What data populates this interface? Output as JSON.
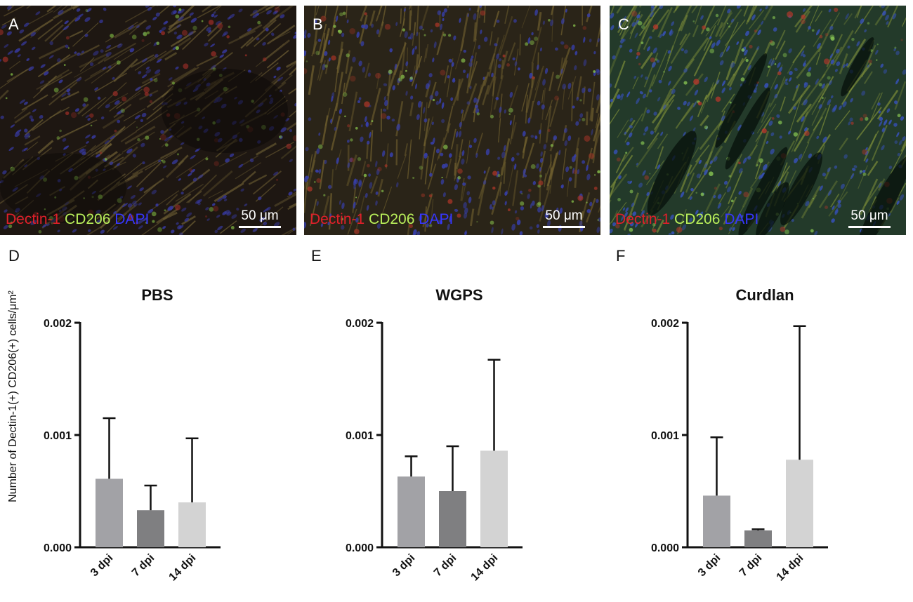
{
  "micrographs": [
    {
      "label": "A",
      "stain": {
        "red": "Dectin-1",
        "green": "CD206",
        "blue": "DAPI"
      },
      "scale_bar": "50 μm"
    },
    {
      "label": "B",
      "stain": {
        "red": "Dectin-1",
        "green": "CD206",
        "blue": "DAPI"
      },
      "scale_bar": "50 μm"
    },
    {
      "label": "C",
      "stain": {
        "red": "Dectin-1",
        "green": "CD206",
        "blue": "DAPI"
      },
      "scale_bar": "50 μm"
    }
  ],
  "y_axis_label": "Number of Dectin-1(+) CD206(+) cells/μm²",
  "colors": {
    "bar_3dpi": "#a2a2a6",
    "bar_7dpi": "#7f7f81",
    "bar_14dpi": "#d3d3d3"
  },
  "chart_data": [
    {
      "type": "bar",
      "panel": "D",
      "title": "PBS",
      "categories": [
        "3 dpi",
        "7 dpi",
        "14 dpi"
      ],
      "values": [
        0.00061,
        0.00033,
        0.0004
      ],
      "errors": [
        0.00054,
        0.00022,
        0.00057
      ],
      "ylim": [
        0,
        0.002
      ],
      "yticks": [
        "0.000",
        "0.001",
        "0.002"
      ]
    },
    {
      "type": "bar",
      "panel": "E",
      "title": "WGPS",
      "categories": [
        "3 dpi",
        "7 dpi",
        "14 dpi"
      ],
      "values": [
        0.00063,
        0.0005,
        0.00086
      ],
      "errors": [
        0.00018,
        0.0004,
        0.00081
      ],
      "ylim": [
        0,
        0.002
      ],
      "yticks": [
        "0.000",
        "0.001",
        "0.002"
      ]
    },
    {
      "type": "bar",
      "panel": "F",
      "title": "Curdlan",
      "categories": [
        "3 dpi",
        "7 dpi",
        "14 dpi"
      ],
      "values": [
        0.00046,
        0.00015,
        0.00078
      ],
      "errors": [
        0.00052,
        1e-05,
        0.00119
      ],
      "ylim": [
        0,
        0.002
      ],
      "yticks": [
        "0.000",
        "0.001",
        "0.002"
      ]
    }
  ]
}
